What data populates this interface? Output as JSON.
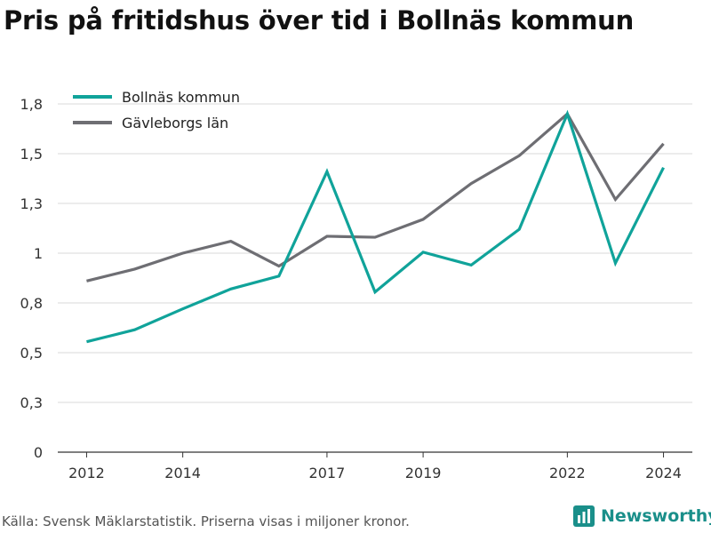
{
  "title": "Pris på fritidshus över tid i Bollnäs kommun",
  "source": "Källa: Svensk Mäklarstatistik. Priserna visas i miljoner kronor.",
  "brand": "Newsworthy",
  "colors": {
    "bollnas": "#10a39a",
    "gavleborg": "#6e6e73",
    "grid": "#d9d9d9",
    "axis": "#333333",
    "brand": "#1a8f8a"
  },
  "chart_data": {
    "type": "line",
    "xlabel": "",
    "ylabel": "",
    "x": [
      2012,
      2013,
      2014,
      2015,
      2016,
      2017,
      2018,
      2019,
      2020,
      2021,
      2022,
      2023,
      2024
    ],
    "xticks": [
      2012,
      2014,
      2017,
      2019,
      2022,
      2024
    ],
    "yticks": [
      0,
      0.25,
      0.5,
      0.75,
      1,
      1.25,
      1.5,
      1.75
    ],
    "ytick_labels": [
      "0",
      "0,3",
      "0,5",
      "0,8",
      "1",
      "1,3",
      "1,5",
      "1,8"
    ],
    "ylim": [
      0,
      1.75
    ],
    "grid": true,
    "legend": "top-left",
    "series": [
      {
        "name": "Bollnäs kommun",
        "color": "#10a39a",
        "values": [
          0.555,
          0.615,
          0.72,
          0.82,
          0.885,
          1.41,
          0.805,
          1.005,
          0.94,
          1.12,
          1.7,
          0.95,
          1.43
        ]
      },
      {
        "name": "Gävleborgs län",
        "color": "#6e6e73",
        "values": [
          0.86,
          0.92,
          1.0,
          1.06,
          0.935,
          1.085,
          1.08,
          1.17,
          1.35,
          1.49,
          1.7,
          1.27,
          1.55
        ]
      }
    ]
  }
}
